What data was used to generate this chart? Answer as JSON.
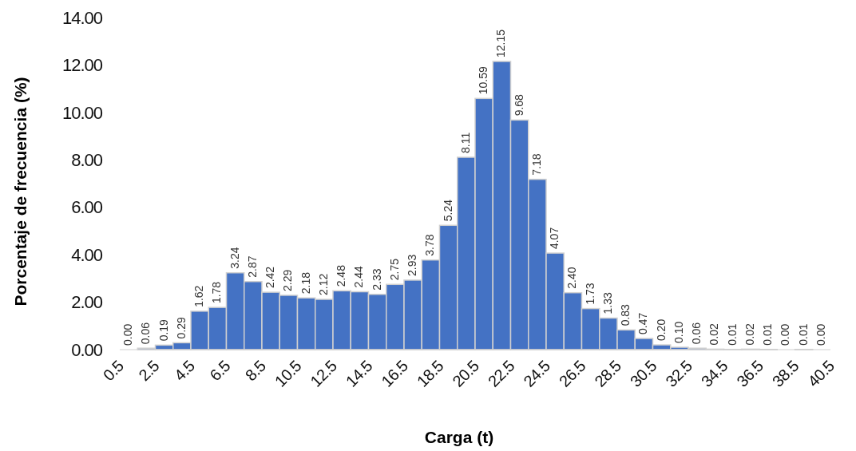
{
  "chart_data": {
    "type": "histogram",
    "xlabel": "Carga (t)",
    "ylabel": "Porcentaje de frecuencia (%)",
    "bins": [
      0.5,
      1.5,
      2.5,
      3.5,
      4.5,
      5.5,
      6.5,
      7.5,
      8.5,
      9.5,
      10.5,
      11.5,
      12.5,
      13.5,
      14.5,
      15.5,
      16.5,
      17.5,
      18.5,
      19.5,
      20.5,
      21.5,
      22.5,
      23.5,
      24.5,
      25.5,
      26.5,
      27.5,
      28.5,
      29.5,
      30.5,
      31.5,
      32.5,
      33.5,
      34.5,
      35.5,
      36.5,
      37.5,
      38.5,
      39.5,
      40.5
    ],
    "values": [
      0.0,
      0.06,
      0.19,
      0.29,
      1.62,
      1.78,
      3.24,
      2.87,
      2.42,
      2.29,
      2.18,
      2.12,
      2.48,
      2.44,
      2.33,
      2.75,
      2.93,
      3.78,
      5.24,
      8.11,
      10.59,
      12.15,
      9.68,
      7.18,
      4.07,
      2.4,
      1.73,
      1.33,
      0.83,
      0.47,
      0.2,
      0.1,
      0.06,
      0.02,
      0.01,
      0.02,
      0.01,
      0.0,
      0.01,
      0.0
    ],
    "value_labels": [
      "0.00",
      "0.06",
      "0.19",
      "0.29",
      "1.62",
      "1.78",
      "3.24",
      "2.87",
      "2.42",
      "2.29",
      "2.18",
      "2.12",
      "2.48",
      "2.44",
      "2.33",
      "2.75",
      "2.93",
      "3.78",
      "5.24",
      "8.11",
      "10.59",
      "12.15",
      "9.68",
      "7.18",
      "4.07",
      "2.40",
      "1.73",
      "1.33",
      "0.83",
      "0.47",
      "0.20",
      "0.10",
      "0.06",
      "0.02",
      "0.01",
      "0.02",
      "0.01",
      "0.00",
      "0.01",
      "0.00"
    ],
    "color": "#4472c4",
    "xlim": [
      0.5,
      40.5
    ],
    "xticks": [
      0.5,
      2.5,
      4.5,
      6.5,
      8.5,
      10.5,
      12.5,
      14.5,
      16.5,
      18.5,
      20.5,
      22.5,
      24.5,
      26.5,
      28.5,
      30.5,
      32.5,
      34.5,
      36.5,
      38.5,
      40.5
    ],
    "ylim": [
      0,
      14
    ],
    "yticks": [
      {
        "value": 0,
        "label": "0.00"
      },
      {
        "value": 2,
        "label": "2.00"
      },
      {
        "value": 4,
        "label": "4.00"
      },
      {
        "value": 6,
        "label": "6.00"
      },
      {
        "value": 8,
        "label": "8.00"
      },
      {
        "value": 10,
        "label": "10.00"
      },
      {
        "value": 12,
        "label": "12.00"
      },
      {
        "value": 14,
        "label": "14.00"
      }
    ],
    "grid": false
  }
}
